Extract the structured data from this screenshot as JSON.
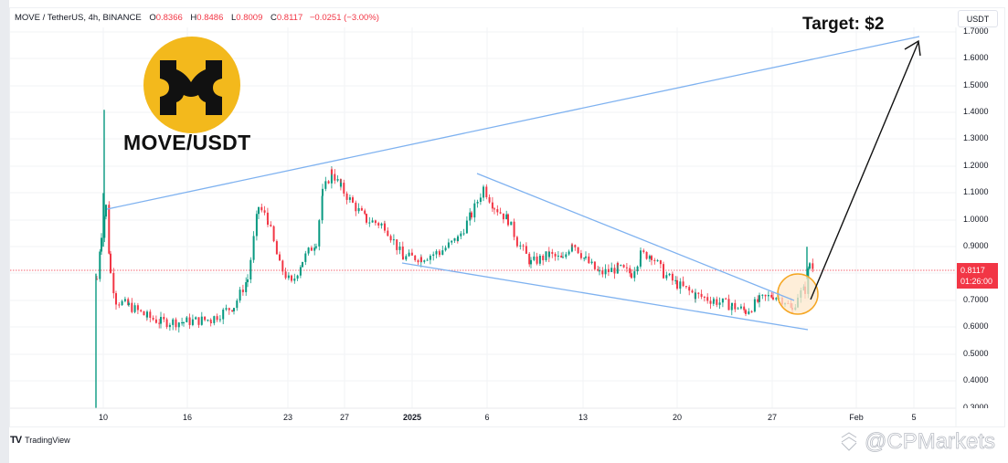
{
  "header": {
    "symbol": "MOVE / TetherUS, 4h, BINANCE",
    "ohlc": {
      "o_label": "O",
      "o": "0.8366",
      "h_label": "H",
      "h": "0.8486",
      "l_label": "L",
      "l": "0.8009",
      "c_label": "C",
      "c": "0.8117",
      "change": "−0.0251 (−3.00%)"
    }
  },
  "currency": "USDT",
  "overlay": {
    "coin_title": "MOVE/USDT",
    "target_label": "Target: $2"
  },
  "last_price": {
    "value": "0.8117",
    "countdown": "01:26:00"
  },
  "branding": {
    "platform": "TradingView",
    "platform_logo": "TV",
    "watermark": "@CPMarkets"
  },
  "colors": {
    "up": "#089981",
    "down": "#f23645",
    "trendline": "#7fb2f0",
    "highlight_fill": "#fde8cc",
    "highlight_stroke": "#f5a623",
    "coin_bg": "#f3b91c",
    "grid": "#f2f3f5"
  },
  "chart_data": {
    "type": "candlestick",
    "title": "MOVE / TetherUS, 4h, BINANCE",
    "xlabel": "",
    "ylabel": "USDT",
    "ylim": [
      0.3,
      1.7
    ],
    "grid": true,
    "y_ticks": [
      "1.7000",
      "1.6000",
      "1.5000",
      "1.4000",
      "1.3000",
      "1.2000",
      "1.1000",
      "1.0000",
      "0.9000",
      "0.7000",
      "0.6000",
      "0.5000",
      "0.4000",
      "0.3000"
    ],
    "x_ticks": [
      "10",
      "16",
      "23",
      "27",
      "2025",
      "6",
      "13",
      "20",
      "27",
      "Feb",
      "5"
    ],
    "last_price": 0.8117,
    "approx_path": [
      {
        "date": "Dec 9",
        "price": 0.3
      },
      {
        "date": "Dec 10",
        "price": 1.4
      },
      {
        "date": "Dec 10",
        "price": 1.04
      },
      {
        "date": "Dec 11",
        "price": 0.7
      },
      {
        "date": "Dec 13",
        "price": 0.66
      },
      {
        "date": "Dec 16",
        "price": 0.62
      },
      {
        "date": "Dec 19",
        "price": 0.63
      },
      {
        "date": "Dec 21",
        "price": 1.1
      },
      {
        "date": "Dec 23",
        "price": 0.8
      },
      {
        "date": "Dec 26",
        "price": 1.22
      },
      {
        "date": "Dec 28",
        "price": 0.95
      },
      {
        "date": "Dec 31",
        "price": 0.84
      },
      {
        "date": "Jan 5",
        "price": 1.15
      },
      {
        "date": "Jan 9",
        "price": 0.85
      },
      {
        "date": "Jan 12",
        "price": 0.94
      },
      {
        "date": "Jan 17",
        "price": 0.89
      },
      {
        "date": "Jan 19",
        "price": 0.76
      },
      {
        "date": "Jan 24",
        "price": 0.66
      },
      {
        "date": "Jan 27",
        "price": 0.74
      },
      {
        "date": "Jan 28",
        "price": 0.9
      },
      {
        "date": "Jan 29",
        "price": 0.81
      }
    ],
    "annotations": [
      {
        "type": "trendline",
        "label": "upper resistance",
        "from": {
          "date": "Dec 10",
          "price": 1.04
        },
        "to": {
          "date": "Feb 5",
          "price": 1.68
        }
      },
      {
        "type": "trendline",
        "label": "falling wedge top",
        "from": {
          "date": "Jan 5",
          "price": 1.16
        },
        "to": {
          "date": "Jan 28",
          "price": 0.7
        }
      },
      {
        "type": "trendline",
        "label": "falling wedge bottom",
        "from": {
          "date": "Dec 31",
          "price": 0.84
        },
        "to": {
          "date": "Jan 29",
          "price": 0.59
        }
      },
      {
        "type": "circle",
        "label": "breakout zone",
        "center": {
          "date": "Jan 28",
          "price": 0.72
        }
      },
      {
        "type": "arrow",
        "label": "Target: $2",
        "from": {
          "date": "Jan 29",
          "price": 0.7
        },
        "to": {
          "date": "Feb 5",
          "price": 1.65
        }
      }
    ]
  }
}
